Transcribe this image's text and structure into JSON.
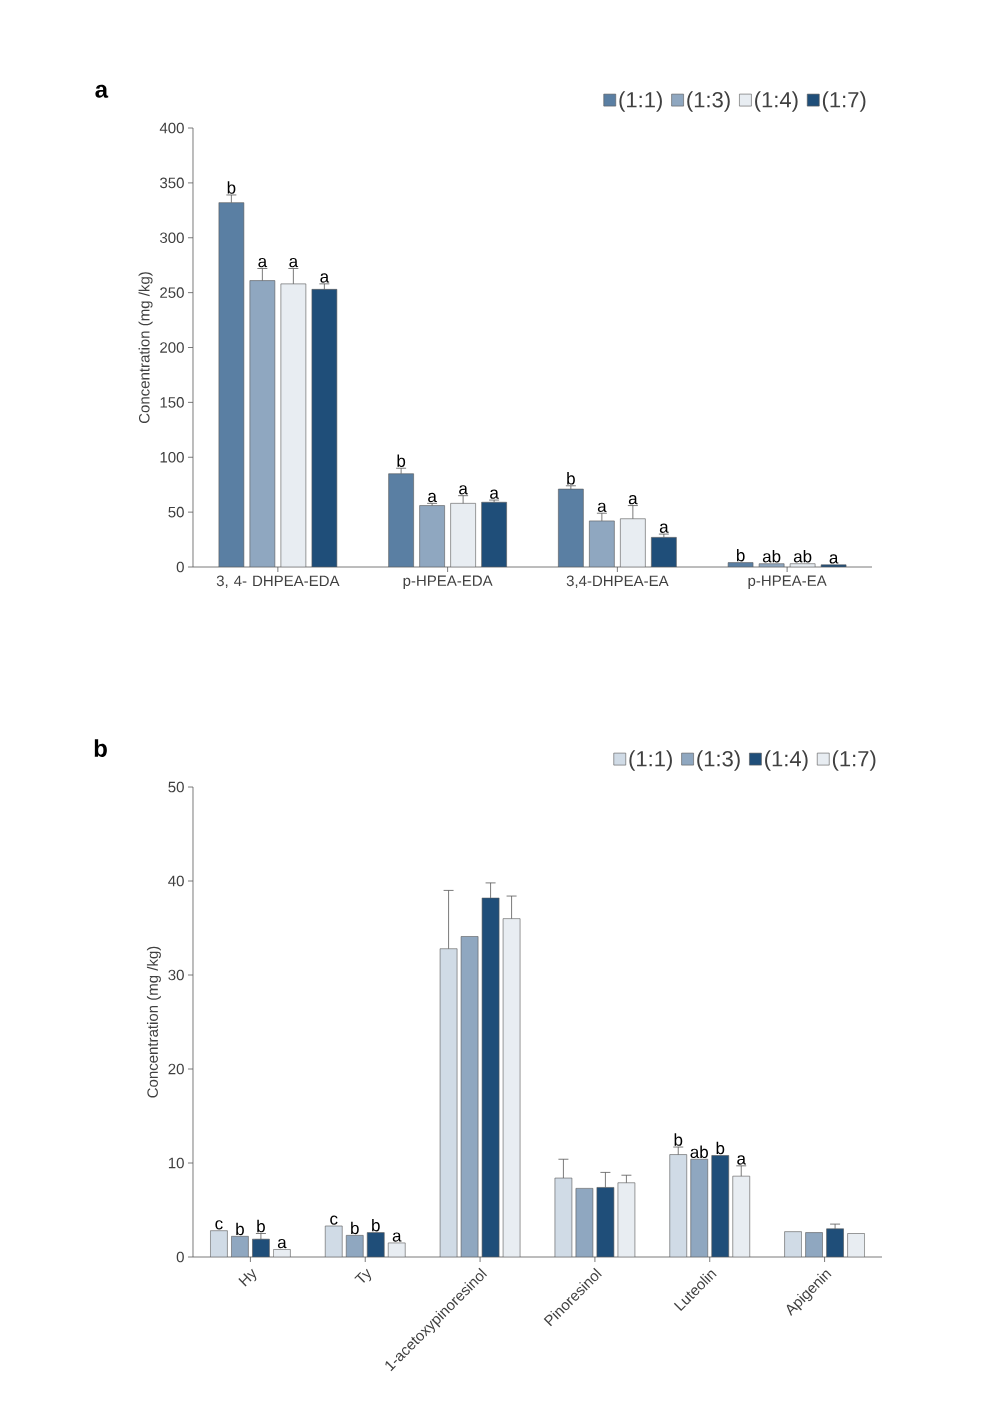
{
  "chart_data": [
    {
      "type": "bar",
      "title": "a",
      "ylabel": "Concentration (mg /kg)",
      "categories": [
        "3, 4- DHPEA-EDA",
        "p-HPEA-EDA",
        "3,4-DHPEA-EA",
        "p-HPEA-EA"
      ],
      "ylim": [
        0,
        400
      ],
      "yticks": [
        0,
        50,
        100,
        150,
        200,
        250,
        300,
        350,
        400
      ],
      "legend": "top right",
      "series": [
        {
          "name": "(1:1)",
          "color": "#5a7fa3",
          "values": [
            332,
            85,
            71,
            4
          ],
          "errors": [
            7,
            5,
            3,
            null
          ],
          "value_labels": [
            "b",
            "b",
            "b",
            "b"
          ]
        },
        {
          "name": "(1:3)",
          "color": "#8fa7c0",
          "values": [
            261,
            56,
            42,
            3
          ],
          "errors": [
            11,
            2,
            7,
            null
          ],
          "value_labels": [
            "a",
            "a",
            "a",
            "ab"
          ]
        },
        {
          "name": "(1:4)",
          "color": "#e8edf2",
          "values": [
            258,
            58,
            44,
            3
          ],
          "errors": [
            14,
            7,
            12,
            null
          ],
          "value_labels": [
            "a",
            "a",
            "a",
            "ab"
          ]
        },
        {
          "name": "(1:7)",
          "color": "#1f4e79",
          "values": [
            253,
            59,
            27,
            2
          ],
          "errors": [
            5,
            2,
            3,
            null
          ],
          "value_labels": [
            "a",
            "a",
            "a",
            "a"
          ]
        }
      ]
    },
    {
      "type": "bar",
      "title": "b",
      "ylabel": "Concentration (mg /kg)",
      "categories": [
        "Hy",
        "Ty",
        "1-acetoxypinoresinol",
        "Pinoresinol",
        "Luteolin",
        "Apigenin"
      ],
      "ylim": [
        0,
        50
      ],
      "yticks": [
        0,
        10,
        20,
        30,
        40,
        50
      ],
      "legend": "top right",
      "series": [
        {
          "name": "(1:1)",
          "color": "#d0dbe6",
          "values": [
            2.8,
            3.3,
            32.8,
            8.4,
            10.9,
            2.7
          ],
          "errors": [
            null,
            null,
            6.2,
            2.0,
            0.8,
            null
          ],
          "value_labels": [
            "c",
            "c",
            null,
            null,
            "b",
            null
          ]
        },
        {
          "name": "(1:3)",
          "color": "#8fa7c0",
          "values": [
            2.2,
            2.3,
            34.1,
            7.3,
            10.4,
            2.6
          ],
          "value_labels": [
            "b",
            "b",
            null,
            null,
            "ab",
            null
          ]
        },
        {
          "name": "(1:4)",
          "color": "#1f4e79",
          "values": [
            1.9,
            2.6,
            38.2,
            7.4,
            10.8,
            3.0
          ],
          "errors": [
            0.6,
            null,
            1.6,
            1.6,
            null,
            0.5
          ],
          "value_labels": [
            "b",
            "b",
            null,
            null,
            "b",
            null
          ]
        },
        {
          "name": "(1:7)",
          "color": "#e8edf2",
          "values": [
            0.8,
            1.5,
            36.0,
            7.9,
            8.6,
            2.5
          ],
          "errors": [
            null,
            null,
            2.4,
            0.8,
            1.1,
            null
          ],
          "value_labels": [
            "a",
            "a",
            null,
            null,
            "a",
            null
          ]
        }
      ]
    }
  ]
}
